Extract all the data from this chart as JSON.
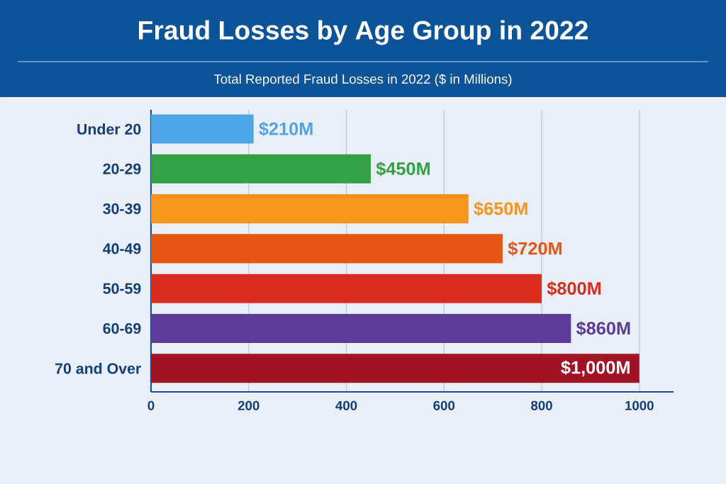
{
  "chart_data": {
    "type": "bar",
    "orientation": "horizontal",
    "title": "Fraud Losses by Age Group in 2022",
    "subtitle": "Total Reported Fraud Losses in 2022 ($ in Millions)",
    "categories": [
      "Under 20",
      "20-29",
      "30-39",
      "40-49",
      "50-59",
      "60-69",
      "70 and Over"
    ],
    "values": [
      210,
      450,
      650,
      720,
      800,
      860,
      1000
    ],
    "colors": [
      "#4da6e3",
      "#34a046",
      "#f6951e",
      "#e35614",
      "#dc2c1f",
      "#5c3c98",
      "#a11425"
    ],
    "value_labels": [
      "$210M",
      "$450M",
      "$650M",
      "$720M",
      "$800M",
      "$860M",
      "$1,000M"
    ],
    "xlim": [
      0,
      1070
    ],
    "xticks": [
      0,
      200,
      400,
      600,
      800,
      1000
    ],
    "grid": "x"
  }
}
